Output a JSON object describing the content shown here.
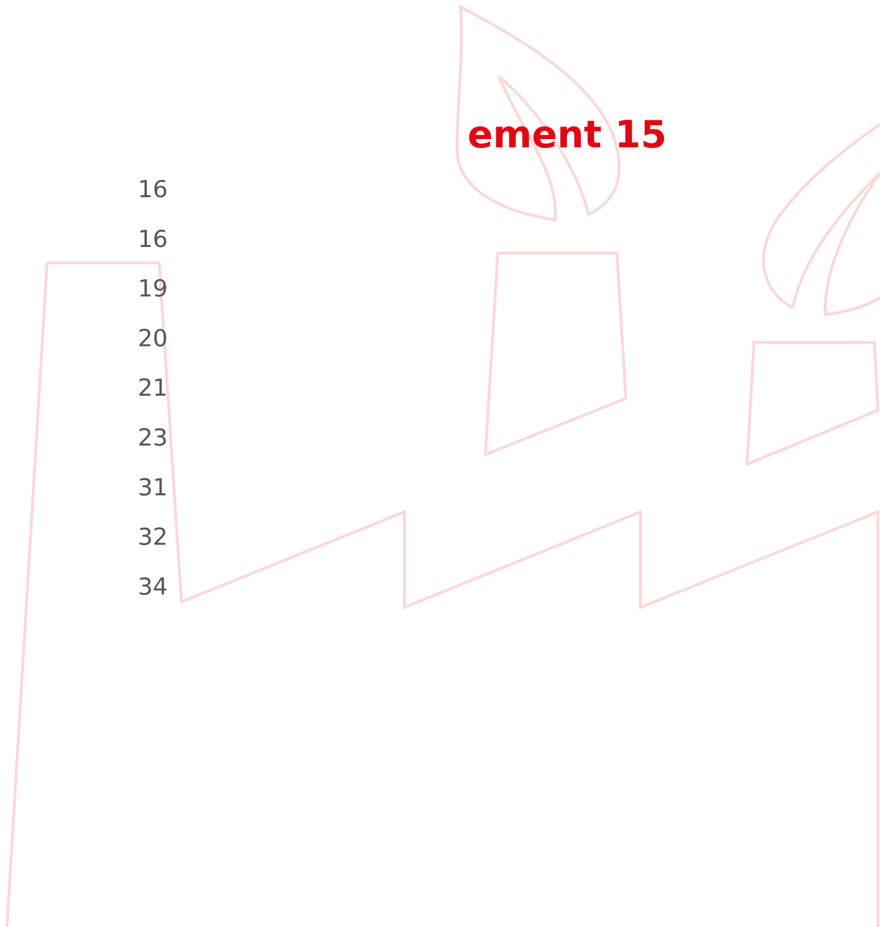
{
  "heading": "ement 15",
  "page_numbers": [
    16,
    16,
    19,
    20,
    21,
    23,
    31,
    32,
    34
  ]
}
